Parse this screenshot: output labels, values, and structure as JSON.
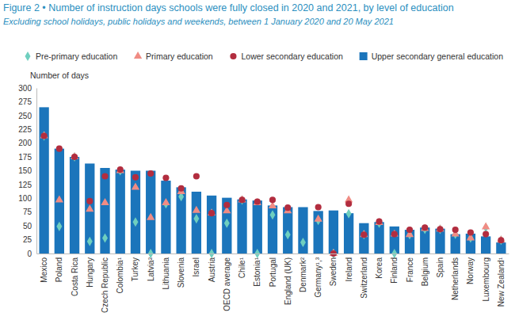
{
  "chart_data": {
    "type": "bar",
    "title": "Figure 2 • Number of instruction days schools were fully closed in 2020 and 2021, by level of education",
    "subtitle": "Excluding school holidays, public holidays and weekends, between 1 January 2020 and 20 May 2021",
    "y_label": "Number of days",
    "categories": [
      "Mexico",
      "Poland",
      "Costa Rica",
      "Hungary",
      "Czech Republic",
      "Colombia¹",
      "Turkey",
      "Latvia²",
      "Lithuania",
      "Slovenia",
      "Israel",
      "Austria",
      "OECD average",
      "Chile¹",
      "Estonia¹",
      "Portugal",
      "England (UK)",
      "Denmark²",
      "Germany¹,³",
      "Sweden",
      "Ireland",
      "Switzerland",
      "Korea",
      "Finland",
      "France",
      "Belgium",
      "Spain",
      "Netherlands",
      "Norway",
      "Luxembourg",
      "New Zealand¹"
    ],
    "series": [
      {
        "name": "Pre-primary education",
        "type": "scatter",
        "marker": "diamond",
        "color": "#6fcfbf",
        "values": [
          213,
          49,
          175,
          22,
          28,
          150,
          57,
          0,
          90,
          103,
          63,
          0,
          55,
          97,
          0,
          70,
          34,
          20,
          60,
          0,
          72,
          34,
          55,
          0,
          34,
          44,
          44,
          35,
          28,
          47,
          24
        ]
      },
      {
        "name": "Primary education",
        "type": "scatter",
        "marker": "triangle",
        "color": "#f08c84",
        "values": [
          213,
          97,
          175,
          80,
          92,
          150,
          120,
          65,
          92,
          112,
          78,
          73,
          77,
          97,
          92,
          86,
          77,
          null,
          62,
          0,
          97,
          34,
          56,
          35,
          34,
          45,
          44,
          35,
          28,
          48,
          24
        ]
      },
      {
        "name": "Lower secondary education",
        "type": "scatter",
        "marker": "circle",
        "color": "#b22d3f",
        "values": [
          213,
          190,
          175,
          95,
          140,
          152,
          138,
          145,
          137,
          118,
          140,
          73,
          88,
          97,
          94,
          97,
          83,
          null,
          84,
          0,
          90,
          34,
          58,
          35,
          43,
          47,
          44,
          43,
          38,
          35,
          24
        ]
      },
      {
        "name": "Upper secondary general education",
        "type": "bar",
        "marker": "square",
        "color": "#1b75bb",
        "values": [
          265,
          190,
          175,
          163,
          155,
          152,
          150,
          150,
          132,
          120,
          112,
          105,
          101,
          98,
          96,
          87,
          84,
          84,
          77,
          78,
          73,
          55,
          57,
          49,
          43,
          47,
          45,
          35,
          36,
          31,
          20
        ]
      }
    ],
    "ylim": [
      0,
      300
    ],
    "yticks": [
      0,
      25,
      50,
      75,
      100,
      125,
      150,
      175,
      200,
      225,
      250,
      275,
      300
    ],
    "grid": false,
    "legend": "top"
  }
}
